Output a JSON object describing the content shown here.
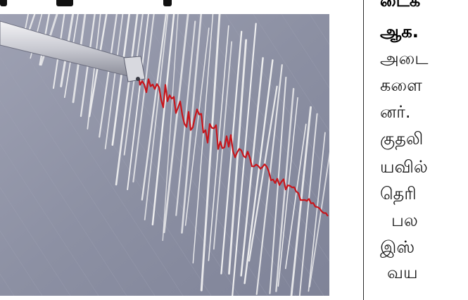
{
  "article": {
    "photo": {
      "subject": "seismograph-recording",
      "trace_color": "#c8151b",
      "line_color": "#f2f2f2",
      "paper_color": "#8f93a6"
    },
    "text_lines": [
      "டைக",
      "ஆக.",
      "அடை",
      "களை",
      "னர்.",
      "குதலி",
      "யவில்",
      "தெரி",
      "பல",
      "இஸ்",
      "வய"
    ]
  }
}
